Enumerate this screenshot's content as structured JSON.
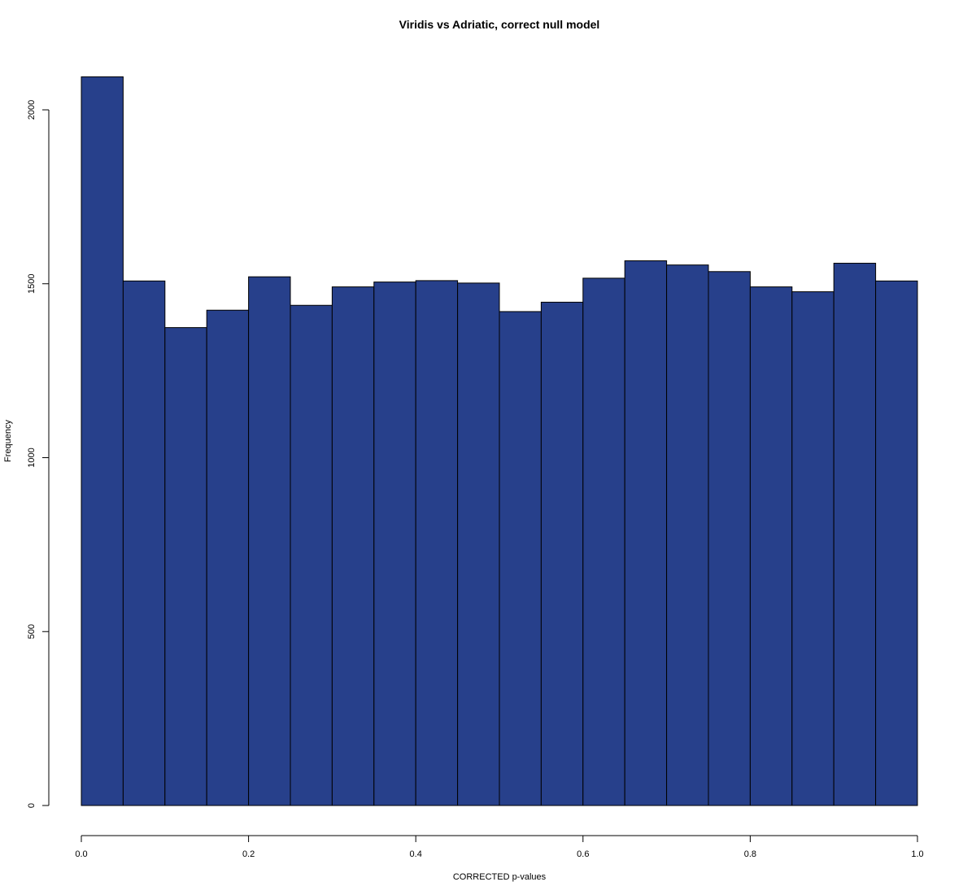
{
  "chart_data": {
    "type": "bar",
    "title": "Viridis vs Adriatic, correct null model",
    "xlabel": "CORRECTED p-values",
    "ylabel": "Frequency",
    "bar_color": "#27408b",
    "xlim": [
      0,
      1
    ],
    "ylim": [
      0,
      2100
    ],
    "x_ticks": [
      0.0,
      0.2,
      0.4,
      0.6,
      0.8,
      1.0
    ],
    "x_tick_labels": [
      "0.0",
      "0.2",
      "0.4",
      "0.6",
      "0.8",
      "1.0"
    ],
    "y_ticks": [
      0,
      500,
      1000,
      1500,
      2000
    ],
    "y_tick_labels": [
      "0",
      "500",
      "1000",
      "1500",
      "2000"
    ],
    "bins": [
      {
        "x0": 0.0,
        "x1": 0.05,
        "value": 2095
      },
      {
        "x0": 0.05,
        "x1": 0.1,
        "value": 1508
      },
      {
        "x0": 0.1,
        "x1": 0.15,
        "value": 1374
      },
      {
        "x0": 0.15,
        "x1": 0.2,
        "value": 1424
      },
      {
        "x0": 0.2,
        "x1": 0.25,
        "value": 1520
      },
      {
        "x0": 0.25,
        "x1": 0.3,
        "value": 1438
      },
      {
        "x0": 0.3,
        "x1": 0.35,
        "value": 1491
      },
      {
        "x0": 0.35,
        "x1": 0.4,
        "value": 1505
      },
      {
        "x0": 0.4,
        "x1": 0.45,
        "value": 1509
      },
      {
        "x0": 0.45,
        "x1": 0.5,
        "value": 1502
      },
      {
        "x0": 0.5,
        "x1": 0.55,
        "value": 1420
      },
      {
        "x0": 0.55,
        "x1": 0.6,
        "value": 1447
      },
      {
        "x0": 0.6,
        "x1": 0.65,
        "value": 1516
      },
      {
        "x0": 0.65,
        "x1": 0.7,
        "value": 1566
      },
      {
        "x0": 0.7,
        "x1": 0.75,
        "value": 1554
      },
      {
        "x0": 0.75,
        "x1": 0.8,
        "value": 1535
      },
      {
        "x0": 0.8,
        "x1": 0.85,
        "value": 1491
      },
      {
        "x0": 0.85,
        "x1": 0.9,
        "value": 1477
      },
      {
        "x0": 0.9,
        "x1": 0.95,
        "value": 1559
      },
      {
        "x0": 0.95,
        "x1": 1.0,
        "value": 1508
      }
    ]
  }
}
